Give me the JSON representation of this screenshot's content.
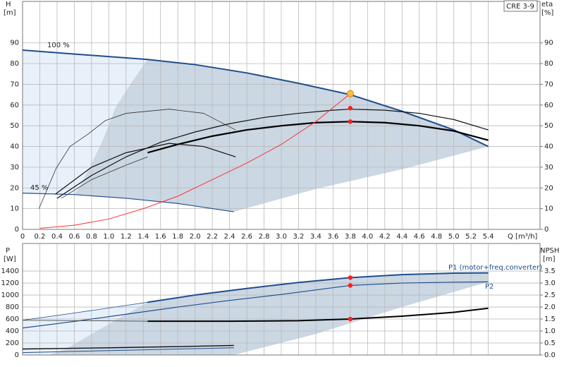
{
  "chart_data": [
    {
      "type": "line",
      "title": "CRE 3-9",
      "y_label": "H",
      "y_unit": "[m]",
      "y2_label": "eta",
      "y2_unit": "[%]",
      "x_label": "Q [m³/h]",
      "xlim": [
        0,
        6
      ],
      "ylim": [
        0,
        110
      ],
      "y2lim": [
        0,
        110
      ],
      "xticks": [
        0,
        0.2,
        0.4,
        0.6,
        0.8,
        {
          "value": 1,
          "label": "1.0"
        },
        1.2,
        1.4,
        1.6,
        1.8,
        {
          "value": 2,
          "label": "2.0"
        },
        2.2,
        2.4,
        2.6,
        2.8,
        {
          "value": 3,
          "label": "3.0"
        },
        3.2,
        3.4,
        3.6,
        3.8,
        {
          "value": 4,
          "label": "4.0"
        },
        4.2,
        4.4,
        4.6,
        4.8,
        {
          "value": 5,
          "label": "5.0"
        },
        5.2,
        5.4
      ],
      "yticks": [
        0,
        10,
        20,
        30,
        40,
        50,
        60,
        70,
        80,
        90
      ],
      "y2ticks": [
        0,
        10,
        20,
        30,
        40,
        50,
        60,
        70,
        80,
        90
      ],
      "grid": true,
      "annotations": [
        "100 %",
        "45 %"
      ],
      "regions": [
        {
          "color": "#e8f0fa",
          "x": [
            0,
            0.7,
            1.45,
            1.25,
            1.08,
            0.92,
            0.78,
            0.64,
            0.6,
            0
          ],
          "y": [
            86.5,
            84.3,
            82,
            70,
            59,
            42,
            30,
            19,
            16.8,
            17.5
          ]
        },
        {
          "color": "#cbd7e3",
          "x": [
            1.45,
            2,
            2.6,
            3.2,
            3.8,
            4.4,
            5,
            5.4,
            4.4,
            3.4,
            2.45,
            2,
            1.2,
            0.6,
            0.64,
            0.78,
            0.92,
            1.08,
            1.25
          ],
          "y": [
            82,
            79.5,
            75.5,
            70.5,
            65,
            57,
            48,
            40,
            29,
            19.5,
            8.5,
            11.3,
            15,
            16.8,
            19,
            30,
            42,
            59,
            70
          ]
        }
      ],
      "series": [
        {
          "color": "#1f4e8c",
          "width": 2,
          "x": [
            0,
            0.7,
            1.45,
            2,
            2.6,
            3.2,
            3.8,
            4.4,
            5,
            5.4
          ],
          "values": [
            86.5,
            84.3,
            82,
            79.5,
            75.5,
            70.5,
            65,
            57,
            48,
            40
          ]
        },
        {
          "color": "#1f4e8c",
          "width": 1.2,
          "x": [
            0,
            0.6,
            1.2,
            1.8,
            2.45
          ],
          "values": [
            17.5,
            16.8,
            15,
            12.5,
            8.5
          ]
        },
        {
          "color": "#111111",
          "width": 1.2,
          "x": [
            0.4,
            0.8,
            1.2,
            1.6,
            2,
            2.4,
            2.8,
            3.2,
            3.6,
            3.8,
            4.2,
            4.6,
            5,
            5.4
          ],
          "values": [
            15,
            26,
            35,
            42,
            47,
            51,
            54,
            56,
            57.5,
            58,
            57.5,
            56,
            53,
            48
          ]
        },
        {
          "color": "#000000",
          "width": 2.2,
          "x": [
            1.45,
            1.8,
            2.2,
            2.6,
            3,
            3.4,
            3.8,
            4.2,
            4.6,
            5,
            5.4
          ],
          "values": [
            37,
            41,
            45,
            48,
            50,
            51.5,
            52,
            51.5,
            50,
            47.5,
            43
          ]
        },
        {
          "color": "#333333",
          "width": 0.8,
          "x": [
            0.19,
            0.39,
            0.55,
            0.76,
            0.96,
            1.2,
            1.7,
            2.1,
            2.47
          ],
          "values": [
            10,
            29.5,
            40,
            46,
            52.5,
            56,
            58,
            56,
            48
          ]
        },
        {
          "color": "#111111",
          "width": 1.2,
          "x": [
            0.38,
            0.8,
            1.2,
            1.7,
            2.1,
            2.47
          ],
          "values": [
            17,
            30,
            37,
            41.5,
            40,
            35
          ]
        },
        {
          "color": "#333333",
          "width": 0.8,
          "x": [
            0.45,
            0.8,
            1.2,
            1.45
          ],
          "values": [
            15,
            24,
            31,
            35
          ]
        },
        {
          "color": "#ff3333",
          "width": 1,
          "x": [
            0.2,
            0.6,
            1,
            1.4,
            1.8,
            2.2,
            2.6,
            3,
            3.4,
            3.8
          ],
          "values": [
            0.5,
            2,
            5,
            10,
            16,
            24,
            32,
            41,
            52,
            65.5
          ]
        },
        {
          "color": "#f5c242",
          "marker": true,
          "x": [
            3.8
          ],
          "values": [
            65.5
          ]
        },
        {
          "color": "#ff2020",
          "marker": true,
          "x": [
            3.8,
            3.8
          ],
          "values": [
            58.5,
            52
          ]
        }
      ]
    },
    {
      "type": "line",
      "y_label": "P",
      "y_unit": "[W]",
      "y2_label": "NPSH",
      "y2_unit": "[m]",
      "xlim": [
        0,
        6
      ],
      "ylim": [
        0,
        1860
      ],
      "y2lim": [
        0,
        4.65
      ],
      "yticks": [
        0,
        200,
        400,
        600,
        800,
        1000,
        1200,
        1400
      ],
      "y2ticks": [
        {
          "value": 0,
          "label": "0.0"
        },
        0.5,
        {
          "value": 1,
          "label": "1.0"
        },
        1.5,
        {
          "value": 2,
          "label": "2.0"
        },
        2.5,
        {
          "value": 3,
          "label": "3.0"
        },
        3.5
      ],
      "grid": true,
      "annotations": [
        "P1 (motor+freq.converter)",
        "P2"
      ],
      "regions": [
        {
          "color": "#e8f0fa",
          "x": [
            0,
            0.6,
            1.45,
            1.1,
            0.8,
            0.5,
            0.3,
            0
          ],
          "y": [
            580,
            700,
            880,
            600,
            350,
            100,
            0,
            0
          ]
        },
        {
          "color": "#cbd7e3",
          "x": [
            1.45,
            2,
            2.6,
            3.2,
            3.8,
            4.4,
            5,
            5.4,
            5.4,
            4.4,
            3.4,
            2.45,
            0.3,
            0.5,
            0.8,
            1.1
          ],
          "y": [
            880,
            1000,
            1110,
            1210,
            1290,
            1340,
            1365,
            1370,
            1220,
            800,
            350,
            0,
            0,
            100,
            350,
            600
          ]
        }
      ],
      "series": [
        {
          "color": "#1f4e8c",
          "width": 2,
          "x": [
            1.45,
            2,
            2.6,
            3.2,
            3.8,
            4.4,
            5,
            5.4
          ],
          "values": [
            880,
            1000,
            1110,
            1210,
            1290,
            1340,
            1365,
            1370
          ]
        },
        {
          "color": "#1f4e8c",
          "width": 0.8,
          "x": [
            0,
            0.6,
            1.45
          ],
          "values": [
            580,
            700,
            880
          ]
        },
        {
          "color": "#1f4e8c",
          "width": 1.2,
          "x": [
            0,
            0.6,
            1.2,
            1.8,
            2.4,
            3,
            3.8,
            4.4,
            5,
            5.4
          ],
          "values": [
            450,
            560,
            680,
            800,
            910,
            1010,
            1160,
            1200,
            1215,
            1220
          ]
        },
        {
          "color": "#000000",
          "width": 2,
          "axis": "y2",
          "x": [
            1.45,
            2.4,
            3.2,
            3.8,
            4.4,
            5,
            5.4
          ],
          "values": [
            1.41,
            1.41,
            1.43,
            1.5,
            1.62,
            1.78,
            1.95
          ]
        },
        {
          "color": "#333333",
          "width": 0.8,
          "axis": "y2",
          "x": [
            0,
            1.45
          ],
          "values": [
            1.45,
            1.41
          ]
        },
        {
          "color": "#111111",
          "width": 1.4,
          "x": [
            0,
            0.6,
            1.2,
            1.8,
            2.45
          ],
          "values": [
            100,
            112,
            125,
            140,
            160
          ]
        },
        {
          "color": "#1f4e8c",
          "width": 1,
          "x": [
            0,
            0.6,
            1.2,
            1.8,
            2.45
          ],
          "values": [
            40,
            60,
            80,
            100,
            120
          ]
        },
        {
          "color": "#ff2020",
          "marker": true,
          "x": [
            3.8,
            3.8
          ],
          "values": [
            1290,
            1160
          ]
        },
        {
          "color": "#ff2020",
          "marker": true,
          "axis": "y2",
          "x": [
            3.8
          ],
          "values": [
            1.5
          ]
        }
      ]
    }
  ]
}
